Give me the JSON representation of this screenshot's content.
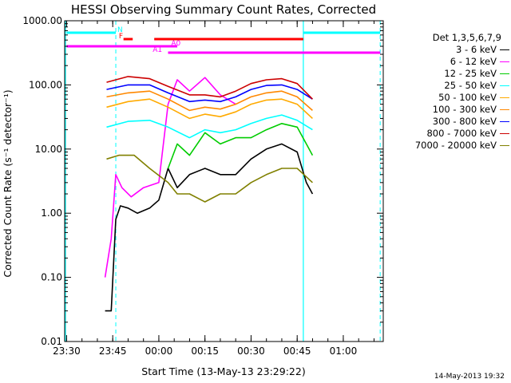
{
  "chart_data": {
    "type": "line",
    "title": "HESSI Observing Summary Count Rates, Corrected",
    "xlabel": "Start Time (13-May-13 23:29:22)",
    "ylabel": "Corrected Count Rate (s⁻¹ detector⁻¹)",
    "y_scale": "log",
    "ylim": [
      0.01,
      1000
    ],
    "xlim": [
      "23:29:22",
      "01:13:00"
    ],
    "x_ticks": [
      "23:30",
      "23:45",
      "00:00",
      "00:15",
      "00:30",
      "00:45",
      "01:00"
    ],
    "y_ticks": [
      "1000.00",
      "100.00",
      "10.00",
      "1.00",
      "0.10",
      "0.01"
    ],
    "legend_title": "Det 1,3,5,6,7,9",
    "legend_position": "right",
    "series": [
      {
        "name": "3 - 6 keV",
        "color": "#000000",
        "x": [
          "23:42:30",
          "23:44:30",
          "23:46:00",
          "23:47:30",
          "23:50:00",
          "23:53:00",
          "23:57:00",
          "00:00:00",
          "00:03:00",
          "00:06:00",
          "00:10:00",
          "00:15:00",
          "00:20:00",
          "00:25:00",
          "00:30:00",
          "00:35:00",
          "00:40:00",
          "00:45:00",
          "00:48:00",
          "00:50:00"
        ],
        "y": [
          0.03,
          0.03,
          0.8,
          1.3,
          1.2,
          1.0,
          1.2,
          1.6,
          5,
          2.5,
          4,
          5,
          4,
          4,
          7,
          10,
          12,
          9,
          3,
          2
        ]
      },
      {
        "name": "6 - 12 keV",
        "color": "#ff00ff",
        "x": [
          "23:42:30",
          "23:44:30",
          "23:46:00",
          "23:48:00",
          "23:51:00",
          "23:55:00",
          "00:00:00",
          "00:03:00",
          "00:06:00",
          "00:10:00",
          "00:15:00",
          "00:20:00",
          "00:25:00"
        ],
        "y": [
          0.1,
          0.4,
          4,
          2.5,
          1.8,
          2.5,
          3,
          50,
          120,
          80,
          130,
          70,
          50
        ]
      },
      {
        "name": "12 - 25 keV",
        "color": "#00cc00",
        "x": [
          "00:03:00",
          "00:06:00",
          "00:10:00",
          "00:15:00",
          "00:20:00",
          "00:25:00",
          "00:30:00",
          "00:35:00",
          "00:40:00",
          "00:45:00",
          "00:48:00",
          "00:50:00"
        ],
        "y": [
          5,
          12,
          8,
          18,
          12,
          15,
          15,
          20,
          25,
          22,
          12,
          8
        ]
      },
      {
        "name": "25 - 50 keV",
        "color": "#00ffff",
        "x": [
          "23:43:00",
          "23:50:00",
          "23:57:00",
          "00:03:00",
          "00:10:00",
          "00:15:00",
          "00:20:00",
          "00:25:00",
          "00:30:00",
          "00:35:00",
          "00:40:00",
          "00:45:00",
          "00:50:00"
        ],
        "y": [
          22,
          27,
          28,
          22,
          15,
          20,
          18,
          20,
          25,
          30,
          34,
          28,
          20
        ]
      },
      {
        "name": "50 - 100 keV",
        "color": "#ffaa00",
        "x": [
          "23:43:00",
          "23:50:00",
          "23:57:00",
          "00:03:00",
          "00:10:00",
          "00:15:00",
          "00:20:00",
          "00:25:00",
          "00:30:00",
          "00:35:00",
          "00:40:00",
          "00:45:00",
          "00:50:00"
        ],
        "y": [
          45,
          55,
          60,
          45,
          30,
          35,
          32,
          38,
          50,
          58,
          60,
          50,
          30
        ]
      },
      {
        "name": "100 - 300 keV",
        "color": "#ff8800",
        "x": [
          "23:43:00",
          "23:50:00",
          "23:57:00",
          "00:03:00",
          "00:10:00",
          "00:15:00",
          "00:20:00",
          "00:25:00",
          "00:30:00",
          "00:35:00",
          "00:40:00",
          "00:45:00",
          "00:50:00"
        ],
        "y": [
          65,
          75,
          80,
          60,
          40,
          45,
          42,
          50,
          65,
          75,
          80,
          65,
          40
        ]
      },
      {
        "name": "300 - 800 keV",
        "color": "#0000ff",
        "x": [
          "23:43:00",
          "23:50:00",
          "23:57:00",
          "00:03:00",
          "00:10:00",
          "00:15:00",
          "00:20:00",
          "00:25:00",
          "00:30:00",
          "00:35:00",
          "00:40:00",
          "00:45:00",
          "00:50:00"
        ],
        "y": [
          85,
          100,
          100,
          75,
          55,
          58,
          55,
          65,
          85,
          98,
          100,
          85,
          60
        ]
      },
      {
        "name": "800 - 7000 keV",
        "color": "#cc0000",
        "x": [
          "23:43:00",
          "23:50:00",
          "23:57:00",
          "00:03:00",
          "00:10:00",
          "00:15:00",
          "00:20:00",
          "00:25:00",
          "00:30:00",
          "00:35:00",
          "00:40:00",
          "00:45:00",
          "00:50:00"
        ],
        "y": [
          110,
          135,
          125,
          95,
          70,
          70,
          65,
          80,
          105,
          120,
          125,
          105,
          60
        ]
      },
      {
        "name": "7000 - 20000 keV",
        "color": "#808000",
        "x": [
          "23:43:00",
          "23:47:00",
          "23:52:00",
          "23:57:00",
          "00:03:00",
          "00:06:00",
          "00:10:00",
          "00:15:00",
          "00:20:00",
          "00:25:00",
          "00:30:00",
          "00:35:00",
          "00:40:00",
          "00:45:00",
          "00:50:00"
        ],
        "y": [
          7,
          8,
          8,
          5,
          3,
          2,
          2,
          1.5,
          2,
          2,
          3,
          4,
          5,
          5,
          3
        ]
      }
    ],
    "status_bars": [
      {
        "label": "N",
        "color": "#00ffff",
        "segments": [
          [
            "23:30",
            "23:46:00"
          ],
          [
            "00:47:00",
            "01:12:00"
          ]
        ]
      },
      {
        "label": "F",
        "color": "#ff0000",
        "segments": [
          [
            "23:48:30",
            "23:51:30"
          ],
          [
            "23:58:30",
            "00:47:00"
          ]
        ]
      },
      {
        "label": "A0",
        "color": "#ff00ff",
        "segments": [
          [
            "23:30",
            "00:06:00"
          ]
        ]
      },
      {
        "label": "A1",
        "color": "#ff00ff",
        "segments": [
          [
            "00:03:00",
            "01:12:00"
          ]
        ]
      }
    ]
  },
  "timestamp": "14-May-2013 19:32",
  "colors": {
    "axis": "#000000",
    "night": "#00ffff"
  }
}
